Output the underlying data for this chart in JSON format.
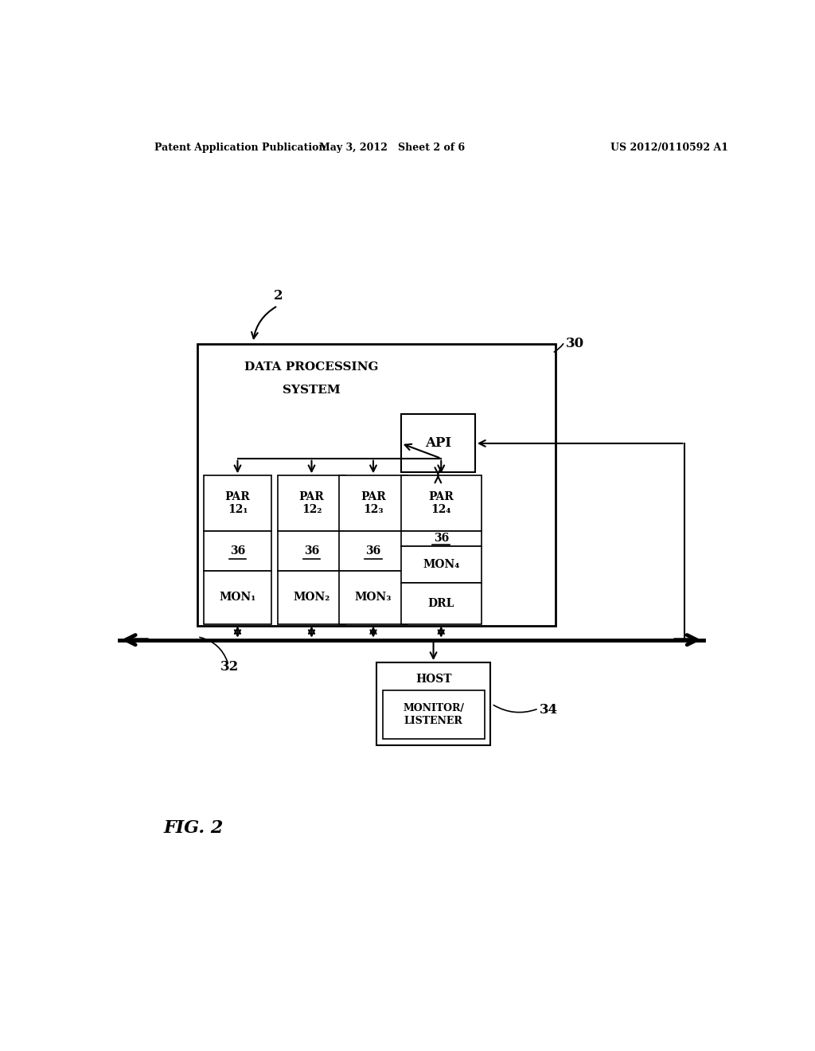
{
  "header_left": "Patent Application Publication",
  "header_mid": "May 3, 2012   Sheet 2 of 6",
  "header_right": "US 2012/0110592 A1",
  "fig_label": "FIG. 2",
  "ref_2": "2",
  "ref_30": "30",
  "ref_32": "32",
  "ref_34": "34",
  "dps_title_line1": "DATA PROCESSING",
  "dps_title_line2": "SYSTEM",
  "api_label": "API",
  "par_texts": [
    "PAR\n12₁",
    "PAR\n12₂",
    "PAR\n12₃",
    "PAR\n12₄"
  ],
  "mon_texts_123": [
    "MON₁",
    "MON₂",
    "MON₃"
  ],
  "mon4_text": "MON₄",
  "drl_label": "DRL",
  "host_label": "HOST",
  "monitor_label": "MONITOR/\nLISTENER",
  "bg_color": "#ffffff",
  "box_color": "#000000",
  "text_color": "#000000"
}
